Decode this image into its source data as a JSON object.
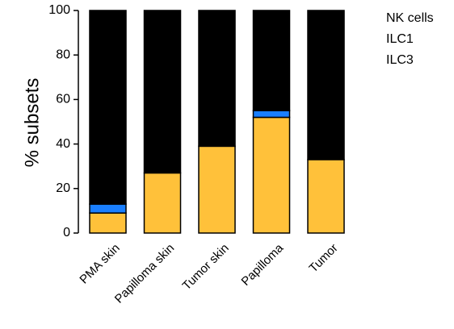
{
  "chart_data": {
    "type": "bar",
    "stacked": true,
    "categories": [
      "PMA skin",
      "Papilloma skin",
      "Tumor skin",
      "Papilloma",
      "Tumor"
    ],
    "series": [
      {
        "name": "ILC3",
        "color": "#FFC13A",
        "values": [
          9,
          27,
          39,
          52,
          33
        ]
      },
      {
        "name": "ILC1",
        "color": "#1A7FFF",
        "values": [
          4,
          0,
          0,
          3,
          0
        ]
      },
      {
        "name": "NK cells",
        "color": "#000000",
        "values": [
          87,
          73,
          61,
          45,
          67
        ]
      }
    ],
    "ylabel": "% subsets",
    "ylim": [
      0,
      100
    ],
    "yticks": [
      0,
      20,
      40,
      60,
      80,
      100
    ],
    "legend": {
      "position": "top-right",
      "entries": [
        "NK cells",
        "ILC1",
        "ILC3"
      ]
    },
    "grid": false
  }
}
